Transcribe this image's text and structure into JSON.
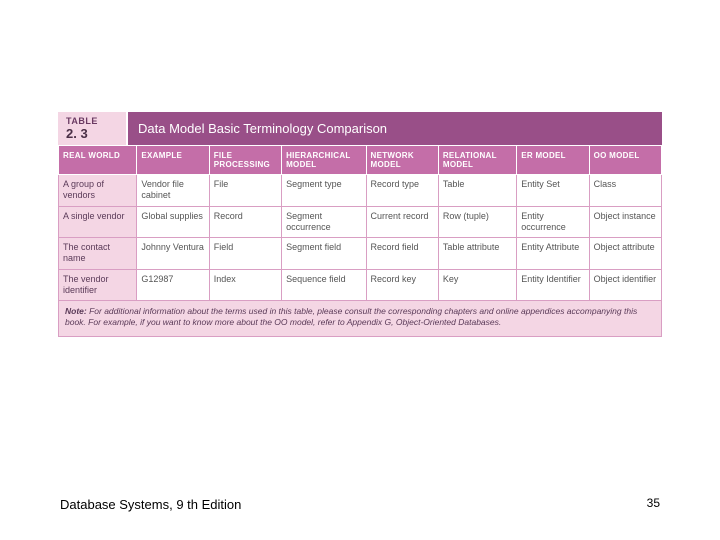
{
  "table": {
    "label": "TABLE",
    "number": "2. 3",
    "title": "Data Model Basic Terminology Comparison",
    "columns": [
      "REAL WORLD",
      "EXAMPLE",
      "FILE PROCESSING",
      "HIERARCHICAL MODEL",
      "NETWORK MODEL",
      "RELATIONAL MODEL",
      "ER MODEL",
      "OO MODEL"
    ],
    "col_widths": [
      "13%",
      "12%",
      "12%",
      "14%",
      "12%",
      "13%",
      "12%",
      "12%"
    ],
    "rows": [
      [
        "A group of vendors",
        "Vendor file cabinet",
        "File",
        "Segment type",
        "Record type",
        "Table",
        "Entity Set",
        "Class"
      ],
      [
        "A single vendor",
        "Global supplies",
        "Record",
        "Segment occurrence",
        "Current record",
        "Row (tuple)",
        "Entity occurrence",
        "Object instance"
      ],
      [
        "The contact name",
        "Johnny Ventura",
        "Field",
        "Segment field",
        "Record field",
        "Table attribute",
        "Entity Attribute",
        "Object attribute"
      ],
      [
        "The vendor identifier",
        "G12987",
        "Index",
        "Sequence field",
        "Record key",
        "Key",
        "Entity Identifier",
        "Object identifier"
      ]
    ],
    "note_label": "Note:",
    "note": "For additional information about the terms used in this table, please consult the corresponding chapters and online appendices accompanying this book. For example, if you want to know more about the OO model, refer to Appendix G, Object-Oriented Databases."
  },
  "footer": "Database Systems, 9 th Edition",
  "page": "35",
  "colors": {
    "header_bar": "#994f88",
    "col_header": "#c46ea8",
    "tint": "#f4d6e4",
    "border": "#d99ec3"
  }
}
